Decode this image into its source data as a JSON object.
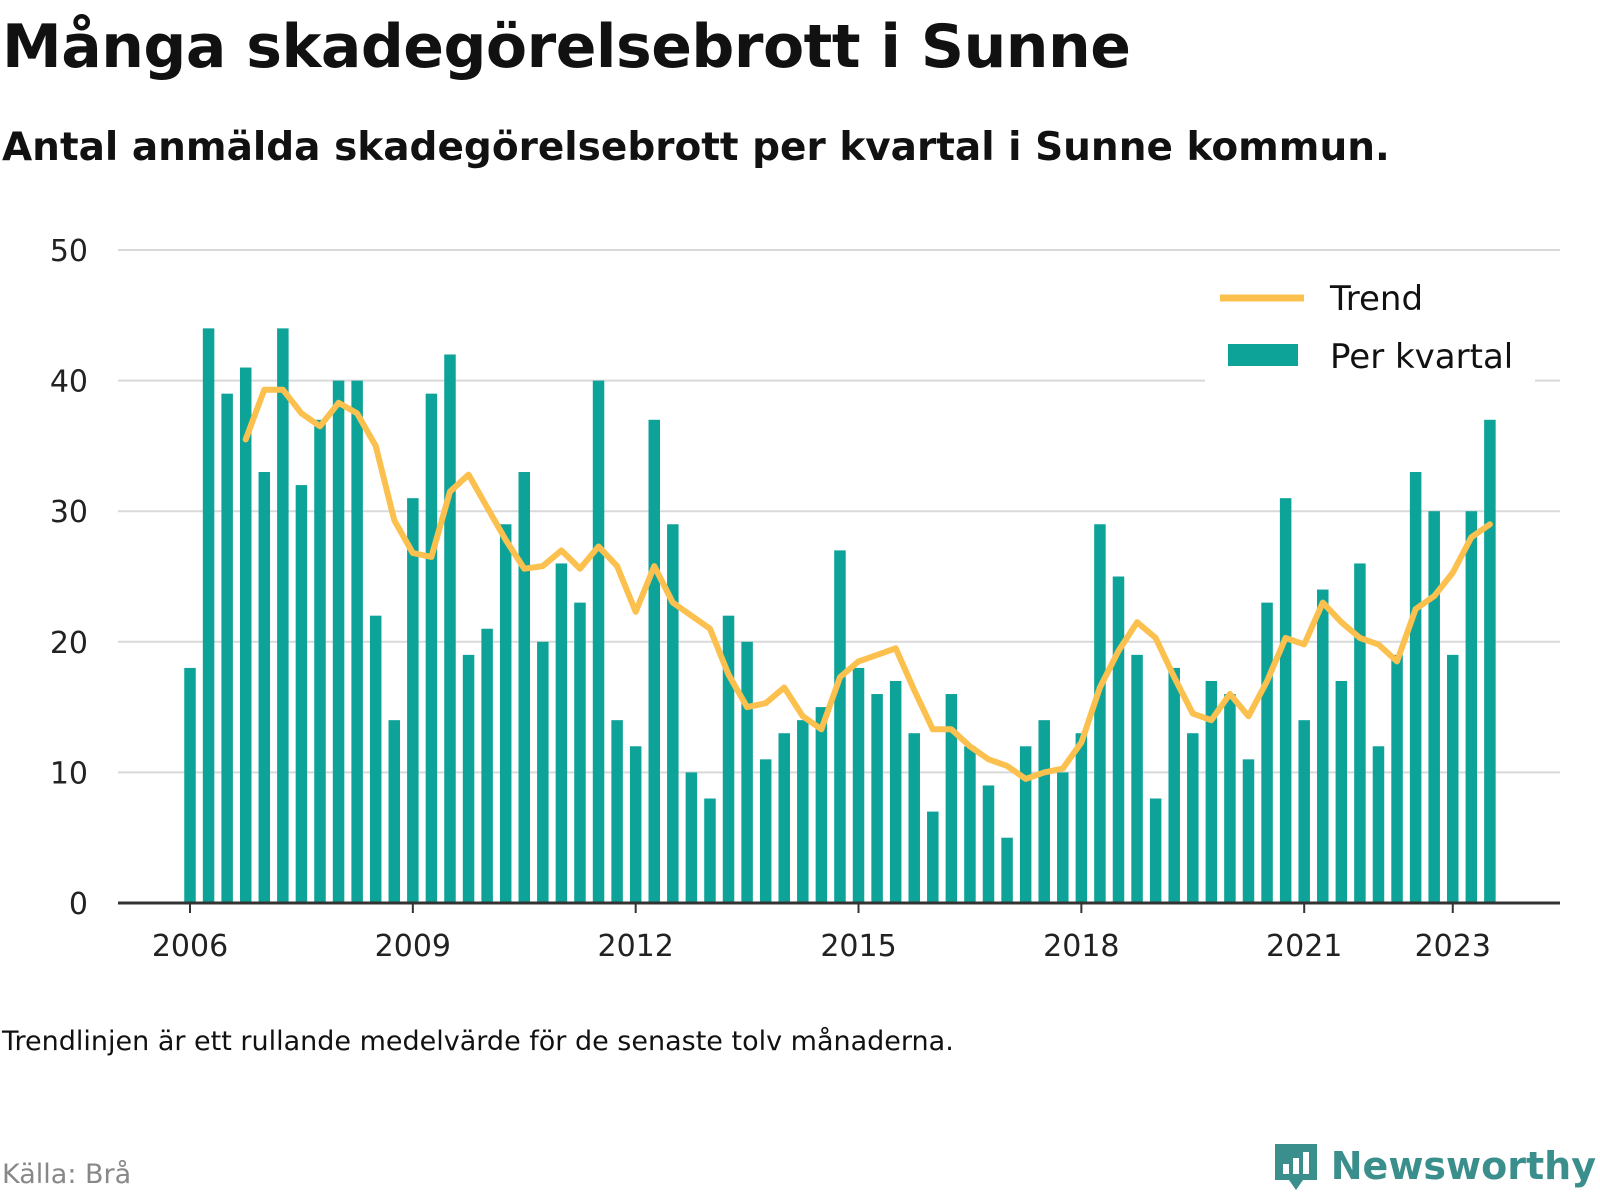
{
  "title": "Många skadegörelsebrott i Sunne",
  "subtitle": "Antal anmälda skadegörelsebrott per kvartal i Sunne kommun.",
  "note": "Trendlinjen är ett rullande medelvärde för de senaste tolv månaderna.",
  "source": "Källa: Brå",
  "brand": "Newsworthy",
  "colors": {
    "bars": "#0ea399",
    "trend": "#fbc04e",
    "grid": "#d9d9d9",
    "axis": "#333333",
    "brand": "#3a8f8c"
  },
  "legend": {
    "trend_label": "Trend",
    "bars_label": "Per kvartal",
    "placement": "top-right"
  },
  "chart_data": {
    "type": "bar",
    "ylim": [
      0,
      50
    ],
    "yticks": [
      0,
      10,
      20,
      30,
      40,
      50
    ],
    "xticks": [
      "2006",
      "2009",
      "2012",
      "2015",
      "2018",
      "2021",
      "2023"
    ],
    "grid": true,
    "series": [
      {
        "name": "Per kvartal",
        "type": "bar",
        "start": "2006 Q1",
        "values": [
          18,
          44,
          39,
          41,
          33,
          44,
          32,
          37,
          40,
          40,
          22,
          14,
          31,
          39,
          42,
          19,
          21,
          29,
          33,
          20,
          26,
          23,
          40,
          14,
          12,
          37,
          29,
          10,
          8,
          22,
          20,
          11,
          13,
          14,
          15,
          27,
          18,
          16,
          17,
          13,
          7,
          16,
          12,
          9,
          5,
          12,
          14,
          10,
          13,
          29,
          25,
          19,
          8,
          18,
          13,
          17,
          16,
          11,
          23,
          31,
          14,
          24,
          17,
          26,
          12,
          19,
          33,
          30,
          19,
          30,
          37
        ]
      },
      {
        "name": "Trend",
        "type": "line",
        "start": "2006 Q4",
        "values": [
          35.5,
          39.3,
          39.3,
          37.5,
          36.5,
          38.3,
          37.5,
          35,
          29.3,
          26.8,
          26.5,
          31.5,
          32.8,
          30.3,
          27.8,
          25.6,
          25.8,
          27.0,
          25.6,
          27.3,
          25.8,
          22.3,
          25.8,
          23.0,
          22.0,
          21.0,
          17.5,
          15.0,
          15.3,
          16.5,
          14.3,
          13.3,
          17.3,
          18.5,
          19.0,
          19.5,
          16.3,
          13.3,
          13.3,
          12.0,
          11.0,
          10.5,
          9.5,
          10.0,
          10.3,
          12.3,
          16.5,
          19.3,
          21.5,
          20.3,
          17.3,
          14.5,
          14.0,
          16.0,
          14.3,
          17.0,
          20.3,
          19.8,
          23.0,
          21.5,
          20.3,
          19.8,
          18.5,
          22.5,
          23.5,
          25.3,
          28.0,
          29.0
        ]
      }
    ]
  }
}
